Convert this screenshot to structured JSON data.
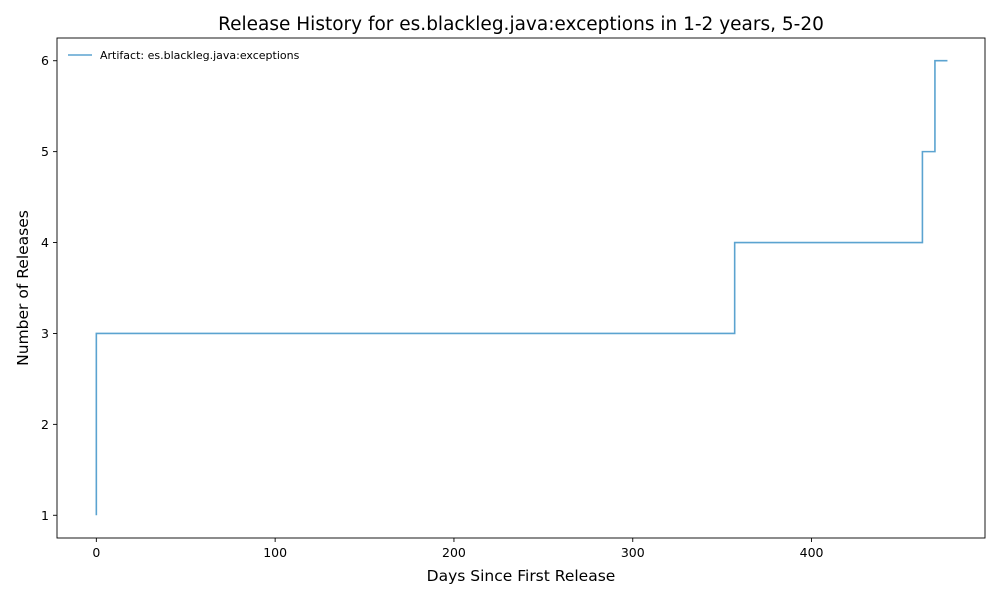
{
  "chart_data": {
    "type": "line",
    "step": "post",
    "title": "Release History for es.blackleg.java:exceptions in 1-2 years, 5-20",
    "xlabel": "Days Since First Release",
    "ylabel": "Number of Releases",
    "xlim": [
      -22,
      497
    ],
    "ylim": [
      0.75,
      6.25
    ],
    "x_ticks": [
      0,
      100,
      200,
      300,
      400
    ],
    "y_ticks": [
      1,
      2,
      3,
      4,
      5,
      6
    ],
    "grid": false,
    "legend_position": "top-left",
    "series": [
      {
        "name": "Artifact: es.blackleg.java:exceptions",
        "color": "#5ba3d0",
        "x": [
          0,
          0,
          357,
          462,
          469,
          476
        ],
        "y": [
          1,
          3,
          4,
          5,
          6,
          6
        ]
      }
    ]
  }
}
